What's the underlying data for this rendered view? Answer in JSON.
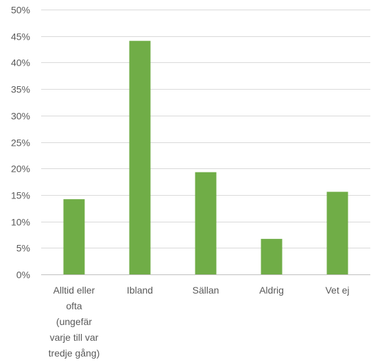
{
  "chart_data": {
    "type": "bar",
    "title": "",
    "xlabel": "",
    "ylabel": "",
    "categories": [
      [
        "Alltid eller",
        "ofta",
        "(ungefär",
        "varje till var",
        "tredje gång)"
      ],
      [
        "Ibland"
      ],
      [
        "Sällan"
      ],
      [
        "Aldrig"
      ],
      [
        "Vet ej"
      ]
    ],
    "values": [
      14.2,
      44.1,
      19.3,
      6.7,
      15.6
    ],
    "ylim": [
      0,
      50
    ],
    "yticks": [
      0,
      5,
      10,
      15,
      20,
      25,
      30,
      35,
      40,
      45,
      50
    ],
    "ytick_labels": [
      "0%",
      "5%",
      "10%",
      "15%",
      "20%",
      "25%",
      "30%",
      "35%",
      "40%",
      "45%",
      "50%"
    ],
    "grid": true,
    "legend": false,
    "colors": {
      "bar": "#70ad47",
      "grid": "#d9d9d9",
      "axis": "#bfbfbf",
      "text": "#595959"
    }
  }
}
